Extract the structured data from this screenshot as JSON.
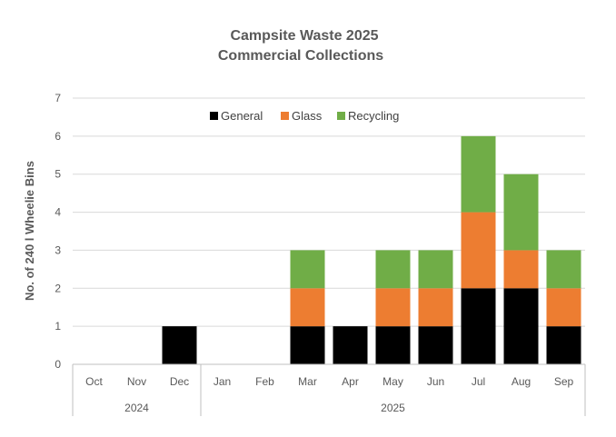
{
  "chart_data": {
    "type": "bar",
    "stacked": true,
    "title": [
      "Campsite Waste 2025",
      "Commercial Collections"
    ],
    "xlabel": "",
    "ylabel": "No. of 240 l Wheelie Bins",
    "ylim": [
      0,
      7
    ],
    "yticks": [
      "0",
      "1",
      "2",
      "3",
      "4",
      "5",
      "6",
      "7"
    ],
    "grid": true,
    "legend_position": "top-center",
    "categories": [
      "Oct",
      "Nov",
      "Dec",
      "Jan",
      "Feb",
      "Mar",
      "Apr",
      "May",
      "Jun",
      "Jul",
      "Aug",
      "Sep"
    ],
    "groups": [
      {
        "label": "2024",
        "count": 3
      },
      {
        "label": "2025",
        "count": 9
      }
    ],
    "series": [
      {
        "name": "General",
        "color": "#000000",
        "values": [
          0,
          0,
          1,
          0,
          0,
          1,
          1,
          1,
          1,
          2,
          2,
          1
        ]
      },
      {
        "name": "Glass",
        "color": "#ED7D31",
        "values": [
          0,
          0,
          0,
          0,
          0,
          1,
          0,
          1,
          1,
          2,
          1,
          1
        ]
      },
      {
        "name": "Recycling",
        "color": "#70AD47",
        "values": [
          0,
          0,
          0,
          0,
          0,
          1,
          0,
          1,
          1,
          2,
          2,
          1
        ]
      }
    ]
  }
}
